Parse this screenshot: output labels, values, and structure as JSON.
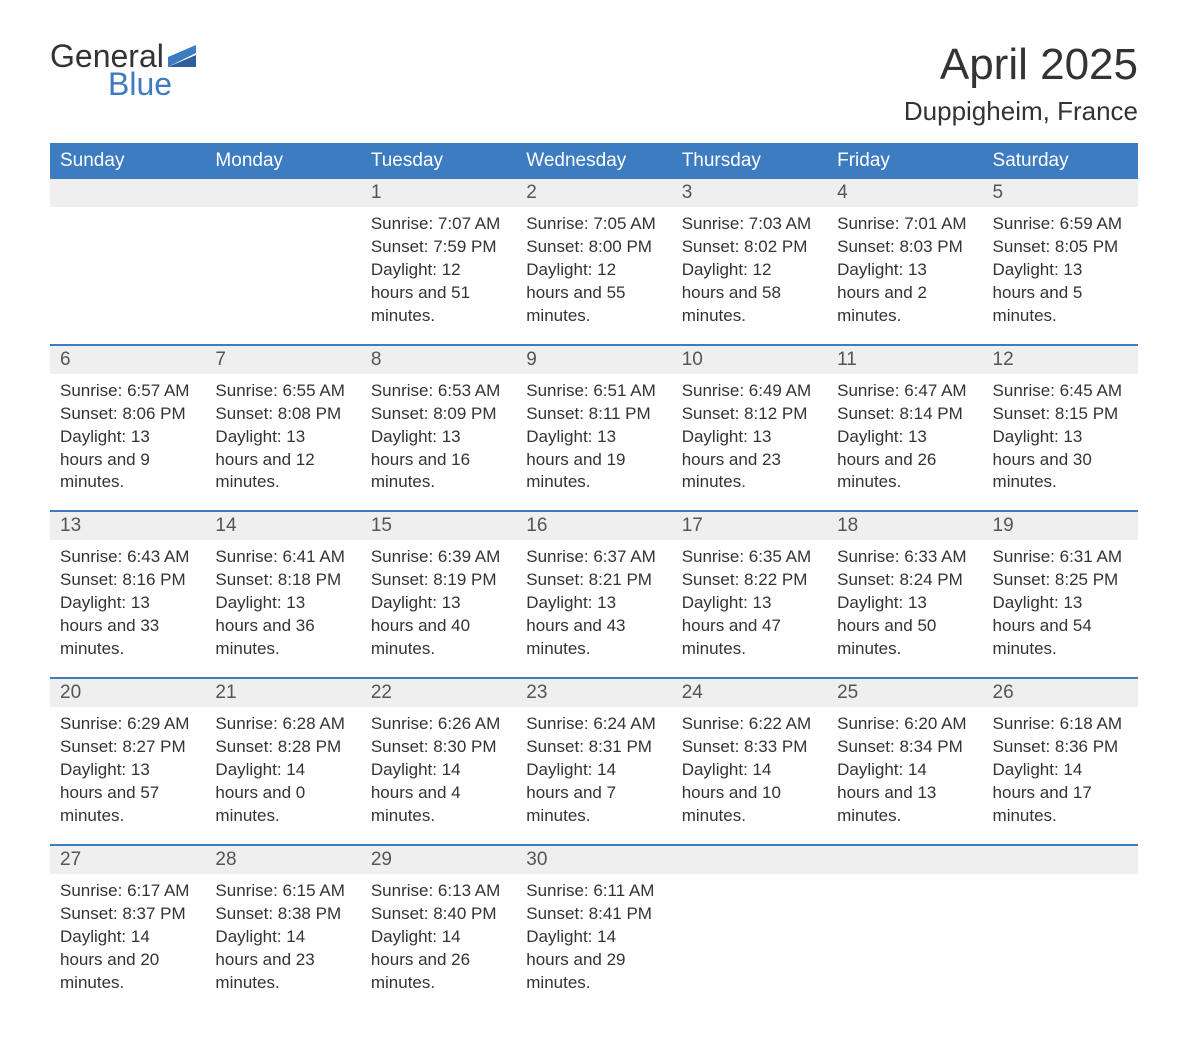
{
  "logo": {
    "text1": "General",
    "text2": "Blue",
    "color1": "#333333",
    "color2": "#3d7cc0"
  },
  "title": "April 2025",
  "location": "Duppigheim, France",
  "colors": {
    "header_bg": "#3d7cc0",
    "header_text": "#ffffff",
    "daynum_bg": "#efefef",
    "body_text": "#333333",
    "background": "#ffffff"
  },
  "day_headers": [
    "Sunday",
    "Monday",
    "Tuesday",
    "Wednesday",
    "Thursday",
    "Friday",
    "Saturday"
  ],
  "weeks": [
    [
      null,
      null,
      {
        "n": "1",
        "sr": "7:07 AM",
        "ss": "7:59 PM",
        "dl": "12 hours and 51 minutes."
      },
      {
        "n": "2",
        "sr": "7:05 AM",
        "ss": "8:00 PM",
        "dl": "12 hours and 55 minutes."
      },
      {
        "n": "3",
        "sr": "7:03 AM",
        "ss": "8:02 PM",
        "dl": "12 hours and 58 minutes."
      },
      {
        "n": "4",
        "sr": "7:01 AM",
        "ss": "8:03 PM",
        "dl": "13 hours and 2 minutes."
      },
      {
        "n": "5",
        "sr": "6:59 AM",
        "ss": "8:05 PM",
        "dl": "13 hours and 5 minutes."
      }
    ],
    [
      {
        "n": "6",
        "sr": "6:57 AM",
        "ss": "8:06 PM",
        "dl": "13 hours and 9 minutes."
      },
      {
        "n": "7",
        "sr": "6:55 AM",
        "ss": "8:08 PM",
        "dl": "13 hours and 12 minutes."
      },
      {
        "n": "8",
        "sr": "6:53 AM",
        "ss": "8:09 PM",
        "dl": "13 hours and 16 minutes."
      },
      {
        "n": "9",
        "sr": "6:51 AM",
        "ss": "8:11 PM",
        "dl": "13 hours and 19 minutes."
      },
      {
        "n": "10",
        "sr": "6:49 AM",
        "ss": "8:12 PM",
        "dl": "13 hours and 23 minutes."
      },
      {
        "n": "11",
        "sr": "6:47 AM",
        "ss": "8:14 PM",
        "dl": "13 hours and 26 minutes."
      },
      {
        "n": "12",
        "sr": "6:45 AM",
        "ss": "8:15 PM",
        "dl": "13 hours and 30 minutes."
      }
    ],
    [
      {
        "n": "13",
        "sr": "6:43 AM",
        "ss": "8:16 PM",
        "dl": "13 hours and 33 minutes."
      },
      {
        "n": "14",
        "sr": "6:41 AM",
        "ss": "8:18 PM",
        "dl": "13 hours and 36 minutes."
      },
      {
        "n": "15",
        "sr": "6:39 AM",
        "ss": "8:19 PM",
        "dl": "13 hours and 40 minutes."
      },
      {
        "n": "16",
        "sr": "6:37 AM",
        "ss": "8:21 PM",
        "dl": "13 hours and 43 minutes."
      },
      {
        "n": "17",
        "sr": "6:35 AM",
        "ss": "8:22 PM",
        "dl": "13 hours and 47 minutes."
      },
      {
        "n": "18",
        "sr": "6:33 AM",
        "ss": "8:24 PM",
        "dl": "13 hours and 50 minutes."
      },
      {
        "n": "19",
        "sr": "6:31 AM",
        "ss": "8:25 PM",
        "dl": "13 hours and 54 minutes."
      }
    ],
    [
      {
        "n": "20",
        "sr": "6:29 AM",
        "ss": "8:27 PM",
        "dl": "13 hours and 57 minutes."
      },
      {
        "n": "21",
        "sr": "6:28 AM",
        "ss": "8:28 PM",
        "dl": "14 hours and 0 minutes."
      },
      {
        "n": "22",
        "sr": "6:26 AM",
        "ss": "8:30 PM",
        "dl": "14 hours and 4 minutes."
      },
      {
        "n": "23",
        "sr": "6:24 AM",
        "ss": "8:31 PM",
        "dl": "14 hours and 7 minutes."
      },
      {
        "n": "24",
        "sr": "6:22 AM",
        "ss": "8:33 PM",
        "dl": "14 hours and 10 minutes."
      },
      {
        "n": "25",
        "sr": "6:20 AM",
        "ss": "8:34 PM",
        "dl": "14 hours and 13 minutes."
      },
      {
        "n": "26",
        "sr": "6:18 AM",
        "ss": "8:36 PM",
        "dl": "14 hours and 17 minutes."
      }
    ],
    [
      {
        "n": "27",
        "sr": "6:17 AM",
        "ss": "8:37 PM",
        "dl": "14 hours and 20 minutes."
      },
      {
        "n": "28",
        "sr": "6:15 AM",
        "ss": "8:38 PM",
        "dl": "14 hours and 23 minutes."
      },
      {
        "n": "29",
        "sr": "6:13 AM",
        "ss": "8:40 PM",
        "dl": "14 hours and 26 minutes."
      },
      {
        "n": "30",
        "sr": "6:11 AM",
        "ss": "8:41 PM",
        "dl": "14 hours and 29 minutes."
      },
      null,
      null,
      null
    ]
  ],
  "labels": {
    "sunrise": "Sunrise:",
    "sunset": "Sunset:",
    "daylight": "Daylight:"
  }
}
